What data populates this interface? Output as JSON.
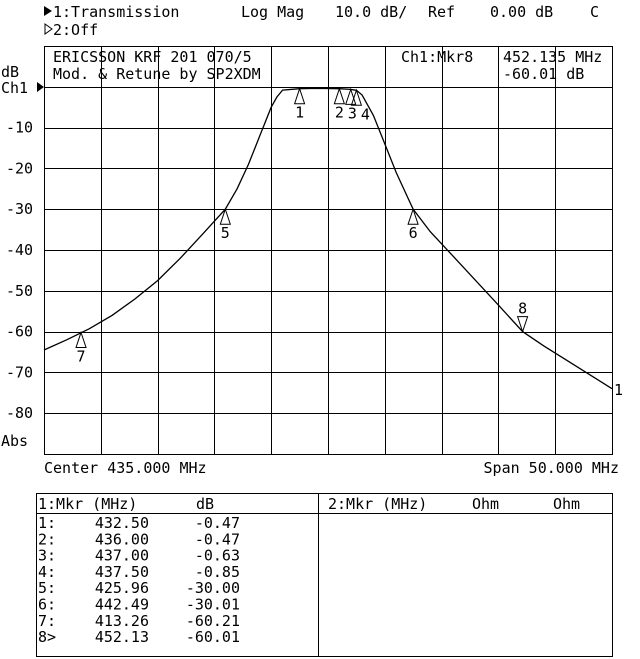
{
  "header": {
    "channel1": "1:Transmission",
    "format": "Log Mag",
    "scale": "10.0 dB/",
    "ref_label": "Ref",
    "ref_value": "0.00 dB",
    "flag": "C",
    "channel2": "2:Off"
  },
  "overlay": {
    "title_line1": "ERICSSON KRF 201 070/5",
    "title_line2": "Mod. & Retune by SP2XDM",
    "active_marker": "Ch1:Mkr8",
    "active_freq": "452.135 MHz",
    "active_value": "-60.01 dB"
  },
  "axis": {
    "unit": "dB",
    "channel_ref": "Ch1",
    "mode": "Abs",
    "center": "Center 435.000 MHz",
    "span": "Span 50.000 MHz",
    "trace_label": "1"
  },
  "chart_data": {
    "type": "line",
    "xlabel": "",
    "ylabel": "dB",
    "xlim": [
      410,
      460
    ],
    "ylim": [
      -90,
      10
    ],
    "grid": true,
    "y_ticks": [
      -10,
      -20,
      -30,
      -40,
      -50,
      -60,
      -70,
      -80
    ],
    "y_tick_labels": [
      "-10",
      "-20",
      "-30",
      "-40",
      "-50",
      "-60",
      "-70",
      "-80"
    ],
    "series": [
      {
        "x": [
          410,
          412,
          414,
          416,
          418,
          420,
          422,
          424,
          425.96,
          427,
          428,
          429,
          430,
          430.5,
          431,
          432.5,
          434,
          436,
          437,
          437.5,
          438,
          439,
          440,
          441,
          442.49,
          444,
          446,
          448,
          450,
          452.13,
          454,
          456,
          458,
          460
        ],
        "y": [
          -64.5,
          -62,
          -59.3,
          -56,
          -52,
          -47.5,
          -42,
          -36,
          -30,
          -25,
          -19,
          -12,
          -5,
          -2.5,
          -0.8,
          -0.47,
          -0.4,
          -0.47,
          -0.63,
          -0.85,
          -2,
          -7,
          -14,
          -21,
          -30.01,
          -35.5,
          -41.5,
          -47.5,
          -53.5,
          -60.01,
          -63.5,
          -67,
          -70.5,
          -74
        ]
      }
    ],
    "markers": [
      {
        "id": "1",
        "freq": 432.5,
        "value": -0.47,
        "active": false
      },
      {
        "id": "2",
        "freq": 436.0,
        "value": -0.47,
        "active": false
      },
      {
        "id": "3",
        "freq": 437.0,
        "value": -0.63,
        "active": false
      },
      {
        "id": "4",
        "freq": 437.5,
        "value": -0.85,
        "active": false
      },
      {
        "id": "5",
        "freq": 425.96,
        "value": -30.0,
        "active": false
      },
      {
        "id": "6",
        "freq": 442.49,
        "value": -30.01,
        "active": false
      },
      {
        "id": "7",
        "freq": 413.26,
        "value": -60.21,
        "active": false
      },
      {
        "id": "8",
        "freq": 452.13,
        "value": -60.01,
        "active": true
      }
    ]
  },
  "table": {
    "left_header": {
      "mkr": "1:Mkr (MHz)",
      "unit": "dB"
    },
    "right_header": {
      "mkr": "2:Mkr (MHz)",
      "unit1": "Ohm",
      "unit2": "Ohm"
    },
    "rows": [
      {
        "label": "1:",
        "freq": "432.50",
        "value": "-0.47"
      },
      {
        "label": "2:",
        "freq": "436.00",
        "value": "-0.47"
      },
      {
        "label": "3:",
        "freq": "437.00",
        "value": "-0.63"
      },
      {
        "label": "4:",
        "freq": "437.50",
        "value": "-0.85"
      },
      {
        "label": "5:",
        "freq": "425.96",
        "value": "-30.00"
      },
      {
        "label": "6:",
        "freq": "442.49",
        "value": "-30.01"
      },
      {
        "label": "7:",
        "freq": "413.26",
        "value": "-60.21"
      },
      {
        "label": "8>",
        "freq": "452.13",
        "value": "-60.01"
      }
    ]
  }
}
